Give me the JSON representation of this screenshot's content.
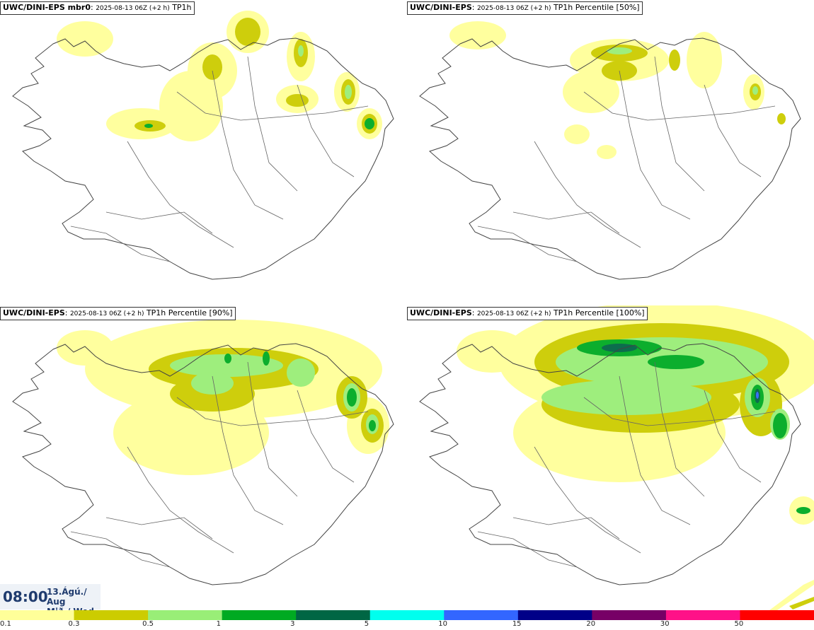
{
  "panels": [
    {
      "model": "UWC/DINI-EPS mbr0",
      "run": "2025-08-13 06Z (+2 h)",
      "field": "TP1h"
    },
    {
      "model": "UWC/DINI-EPS",
      "run": "2025-08-13 06Z (+2 h)",
      "field": "TP1h Percentile [50%]"
    },
    {
      "model": "UWC/DINI-EPS",
      "run": "2025-08-13 06Z (+2 h)",
      "field": "TP1h Percentile [90%]"
    },
    {
      "model": "UWC/DINI-EPS",
      "run": "2025-08-13 06Z (+2 h)",
      "field": "TP1h Percentile [100%]"
    }
  ],
  "valid_time": {
    "time": "08:00",
    "date": "13.Ágú./ Aug",
    "weekday": "Mið./ Wed"
  },
  "colorbar": {
    "ticks": [
      "0.1",
      "0.3",
      "0.5",
      "1",
      "3",
      "5",
      "10",
      "15",
      "20",
      "30",
      "50"
    ],
    "colors": [
      "#ffff99",
      "#cccc00",
      "#99ee77",
      "#00aa22",
      "#006644",
      "#00ffee",
      "#3366ff",
      "#000088",
      "#770066",
      "#ff1188",
      "#ff0000"
    ]
  },
  "legend_colors": {
    "light_yellow": "#ffff99",
    "olive": "#cccc00",
    "light_green": "#99ee77",
    "green": "#00aa22",
    "dark_green": "#006644",
    "cyan": "#00ffee",
    "blue": "#3366ff"
  }
}
